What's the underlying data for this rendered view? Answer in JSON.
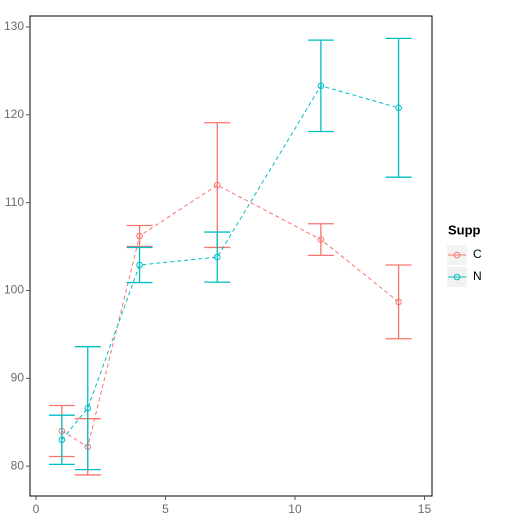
{
  "chart_data": {
    "type": "line",
    "x": [
      1,
      2,
      4,
      7,
      11,
      14
    ],
    "series": [
      {
        "name": "C",
        "color": "#F8766D",
        "values": [
          84.0,
          82.2,
          106.2,
          112.0,
          105.8,
          98.7
        ],
        "errors": [
          2.9,
          3.2,
          1.2,
          7.1,
          1.8,
          4.2
        ]
      },
      {
        "name": "N",
        "color": "#00BFC4",
        "values": [
          83.0,
          86.6,
          102.9,
          103.8,
          123.3,
          120.8
        ],
        "errors": [
          2.8,
          7.0,
          2.0,
          2.85,
          5.2,
          7.9
        ]
      }
    ],
    "legend_title": "Supp",
    "xlim": [
      -0.23,
      15.29
    ],
    "xticks": [
      0,
      5,
      10,
      15
    ],
    "ylim": [
      76.6,
      131.25
    ],
    "yticks": [
      80,
      90,
      100,
      110,
      120,
      130
    ],
    "grid": false
  }
}
